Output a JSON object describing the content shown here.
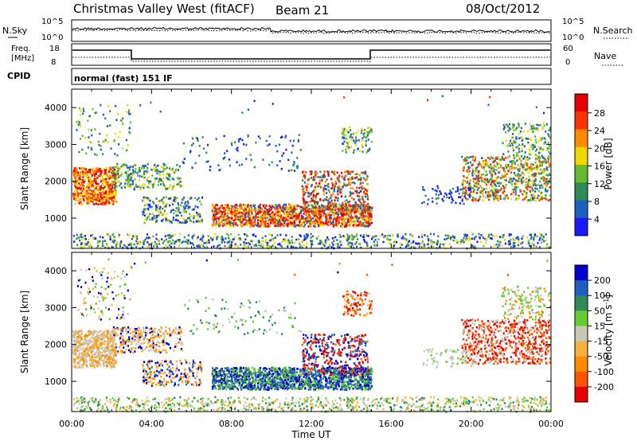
{
  "header": {
    "station": "Christmas Valley West (fitACF)",
    "beam": "Beam 21",
    "date": "08/Oct/2012"
  },
  "param_panels": {
    "nsky_label": "N.Sky",
    "nsearch_label": "N.Search",
    "noise_ticks": [
      "10^5",
      "10^0"
    ],
    "freq_label_line1": "Freq.",
    "freq_label_line2": "[MHz]",
    "freq_ticks": [
      "18",
      "8"
    ],
    "nave_label": "Nave",
    "nave_ticks": [
      "60",
      "0"
    ],
    "cpid_label": "CPID",
    "cpid_text": "normal (fast) 151 IF"
  },
  "colors": {
    "power_scale": [
      "#1a1aff",
      "#1f5fbf",
      "#2e8b57",
      "#66bb33",
      "#f0d800",
      "#ff8c00",
      "#ff3300",
      "#e60000"
    ],
    "velocity_scale": [
      "#0000cc",
      "#1f5fbf",
      "#2e8b57",
      "#66cc33",
      "#c8c8b8",
      "#f7b040",
      "#ff8c00",
      "#ff5500",
      "#e60000"
    ]
  },
  "chart_data": [
    {
      "type": "heatmap",
      "name": "power",
      "xlabel": "Time UT",
      "ylabel": "Slant Range [km]",
      "x_ticks": [
        "00:00",
        "04:00",
        "08:00",
        "12:00",
        "16:00",
        "20:00",
        "00:00"
      ],
      "x_range_hours": [
        0,
        24
      ],
      "y_ticks": [
        1000,
        2000,
        3000,
        4000
      ],
      "y_range_km": [
        180,
        4500
      ],
      "colorbar_label": "Power [dB]",
      "colorbar_ticks": [
        4,
        8,
        12,
        16,
        20,
        24,
        28
      ],
      "color_range": [
        0,
        30
      ]
    },
    {
      "type": "heatmap",
      "name": "velocity",
      "xlabel": "Time UT",
      "ylabel": "Slant Range [km]",
      "x_ticks": [
        "00:00",
        "04:00",
        "08:00",
        "12:00",
        "16:00",
        "20:00",
        "00:00"
      ],
      "x_range_hours": [
        0,
        24
      ],
      "y_ticks": [
        1000,
        2000,
        3000,
        4000
      ],
      "y_range_km": [
        180,
        4500
      ],
      "colorbar_label": "Velocity [m s^-1]",
      "colorbar_ticks": [
        200,
        100,
        50,
        15,
        -15,
        -50,
        -100,
        -200
      ],
      "color_range": [
        -250,
        250
      ]
    }
  ]
}
